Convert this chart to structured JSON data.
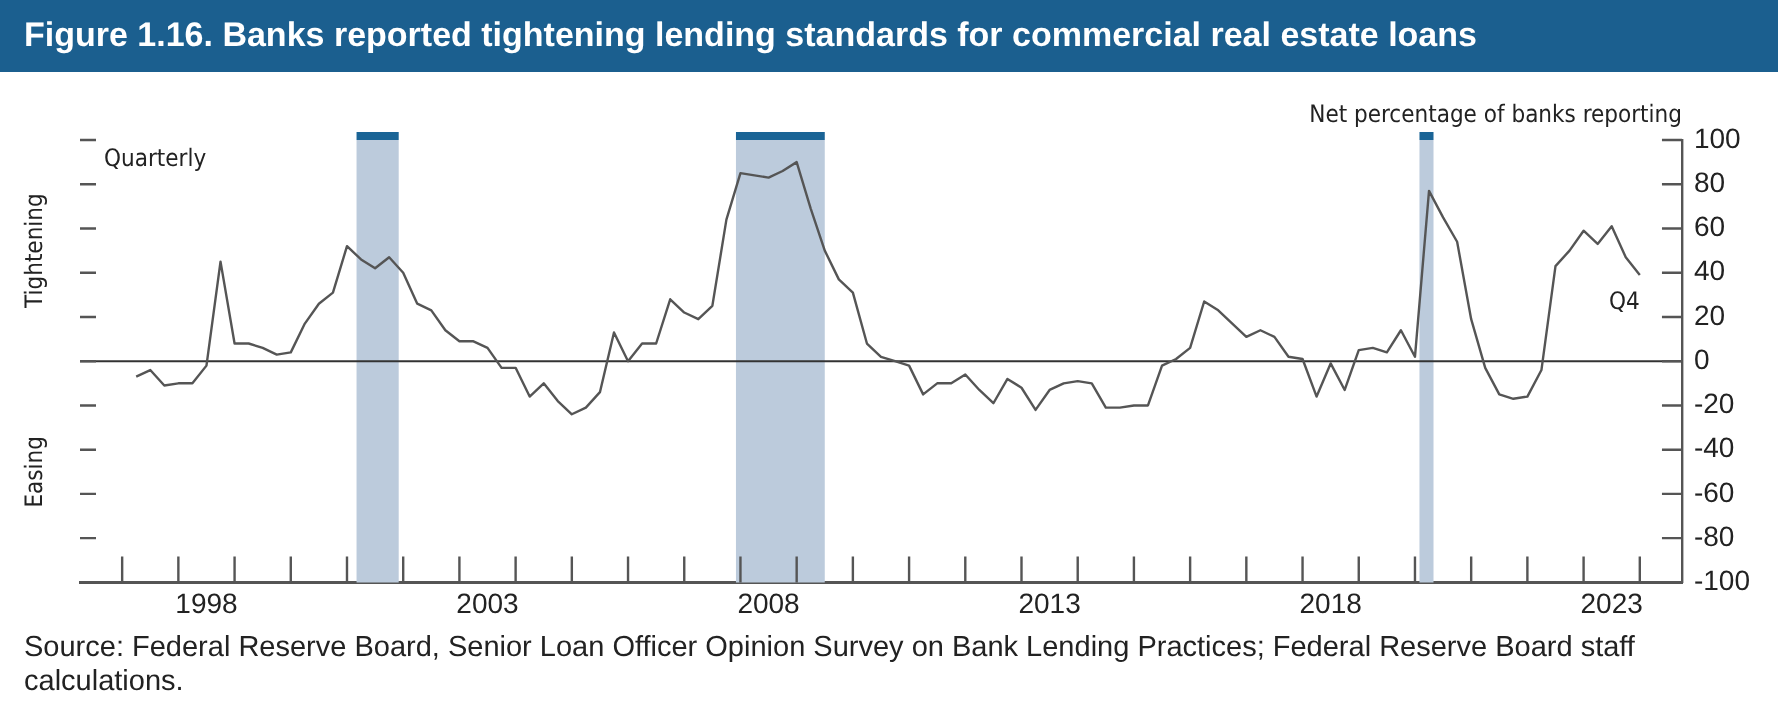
{
  "chart_data": {
    "type": "line",
    "title": "Figure 1.16. Banks reported tightening lending standards for commercial real estate loans",
    "ylabel": "Net percentage of banks reporting",
    "series": [
      {
        "color": "#555555",
        "x": [
          1997.25,
          1997.5,
          1997.75,
          1998,
          1998.25,
          1998.5,
          1998.75,
          1999,
          1999.25,
          1999.5,
          1999.75,
          2000,
          2000.25,
          2000.5,
          2000.75,
          2001,
          2001.25,
          2001.5,
          2001.75,
          2002,
          2002.25,
          2002.5,
          2002.75,
          2003,
          2003.25,
          2003.5,
          2003.75,
          2004,
          2004.25,
          2004.5,
          2004.75,
          2005,
          2005.25,
          2005.5,
          2005.75,
          2006,
          2006.25,
          2006.5,
          2006.75,
          2007,
          2007.25,
          2007.5,
          2007.75,
          2008,
          2008.25,
          2008.5,
          2008.75,
          2009,
          2009.25,
          2009.5,
          2009.75,
          2010,
          2010.25,
          2010.5,
          2010.75,
          2011,
          2011.25,
          2011.5,
          2011.75,
          2012,
          2012.25,
          2012.5,
          2012.75,
          2013,
          2013.25,
          2013.5,
          2013.75,
          2014,
          2014.25,
          2014.5,
          2014.75,
          2015,
          2015.25,
          2015.5,
          2015.75,
          2016,
          2016.25,
          2016.5,
          2016.75,
          2017,
          2017.25,
          2017.5,
          2017.75,
          2018,
          2018.25,
          2018.5,
          2018.75,
          2019,
          2019.25,
          2019.5,
          2019.75,
          2020,
          2020.25,
          2020.5,
          2020.75,
          2021,
          2021.25,
          2021.5,
          2021.75,
          2022,
          2022.25,
          2022.5,
          2022.75,
          2023,
          2023.25,
          2023.5,
          2023.75,
          2024
        ],
        "values": [
          -7,
          -4,
          -11,
          -10,
          -10,
          -2,
          45,
          8,
          8,
          6,
          3,
          4,
          17,
          26,
          31,
          52,
          46,
          42,
          47,
          40,
          26,
          23,
          14,
          9,
          9,
          6,
          -3,
          -3,
          -16,
          -10,
          -18,
          -24,
          -21,
          -14,
          13,
          0,
          8,
          8,
          28,
          22,
          19,
          25,
          64,
          85,
          84,
          83,
          86,
          90,
          69,
          50,
          37,
          31,
          8,
          2,
          0,
          -2,
          -15,
          -10,
          -10,
          -6,
          -13,
          -19,
          -8,
          -12,
          -22,
          -13,
          -10,
          -9,
          -10,
          -21,
          -21,
          -20,
          -20,
          -2,
          1,
          6,
          27,
          23,
          17,
          11,
          14,
          11,
          2,
          1,
          -16,
          -1,
          -13,
          5,
          6,
          4,
          14,
          2,
          77,
          65,
          54,
          19,
          -3,
          -15,
          -17,
          -16,
          -4,
          43,
          50,
          59,
          53,
          61,
          47,
          39
        ]
      }
    ],
    "xlim": [
      1996.25,
      2024.75
    ],
    "xticks": [
      {
        "value": 1997,
        "label": null
      },
      {
        "value": 1998,
        "label": null
      },
      {
        "value": 1998.5,
        "label": "1998"
      },
      {
        "value": 1999,
        "label": null
      },
      {
        "value": 2000,
        "label": null
      },
      {
        "value": 2001,
        "label": null
      },
      {
        "value": 2002,
        "label": null
      },
      {
        "value": 2003,
        "label": null
      },
      {
        "value": 2003.5,
        "label": "2003"
      },
      {
        "value": 2004,
        "label": null
      },
      {
        "value": 2005,
        "label": null
      },
      {
        "value": 2006,
        "label": null
      },
      {
        "value": 2007,
        "label": null
      },
      {
        "value": 2008,
        "label": null
      },
      {
        "value": 2008.5,
        "label": "2008"
      },
      {
        "value": 2009,
        "label": null
      },
      {
        "value": 2010,
        "label": null
      },
      {
        "value": 2011,
        "label": null
      },
      {
        "value": 2012,
        "label": null
      },
      {
        "value": 2013,
        "label": null
      },
      {
        "value": 2013.5,
        "label": "2013"
      },
      {
        "value": 2014,
        "label": null
      },
      {
        "value": 2015,
        "label": null
      },
      {
        "value": 2016,
        "label": null
      },
      {
        "value": 2017,
        "label": null
      },
      {
        "value": 2018,
        "label": null
      },
      {
        "value": 2018.5,
        "label": "2018"
      },
      {
        "value": 2019,
        "label": null
      },
      {
        "value": 2020,
        "label": null
      },
      {
        "value": 2021,
        "label": null
      },
      {
        "value": 2022,
        "label": null
      },
      {
        "value": 2023,
        "label": null
      },
      {
        "value": 2023.5,
        "label": "2023"
      },
      {
        "value": 2024,
        "label": null
      }
    ],
    "ylim": [
      -100,
      100
    ],
    "yticks": [
      -100,
      -80,
      -60,
      -40,
      -20,
      0,
      20,
      40,
      60,
      80,
      100
    ],
    "grid": false,
    "legend": false,
    "marker": "none",
    "line_style": "solid",
    "ref_lines": [
      {
        "axis": "y",
        "value": 0,
        "color": "#333333"
      }
    ],
    "bands": [
      {
        "axis": "x",
        "from": 2001.17,
        "to": 2001.92,
        "color": "#bccbdc"
      },
      {
        "axis": "x",
        "from": 2007.92,
        "to": 2009.5,
        "color": "#bccbdc"
      },
      {
        "axis": "x",
        "from": 2020.08,
        "to": 2020.33,
        "color": "#bccbdc"
      }
    ],
    "annotations": [
      "Quarterly",
      "Tightening",
      "Easing",
      {
        "text": "Q4",
        "x": 2024,
        "y": 39
      },
      "Source: Federal Reserve Board, Senior Loan Officer Opinion Survey on Bank Lending Practices; Federal Reserve Board staff calculations."
    ]
  }
}
